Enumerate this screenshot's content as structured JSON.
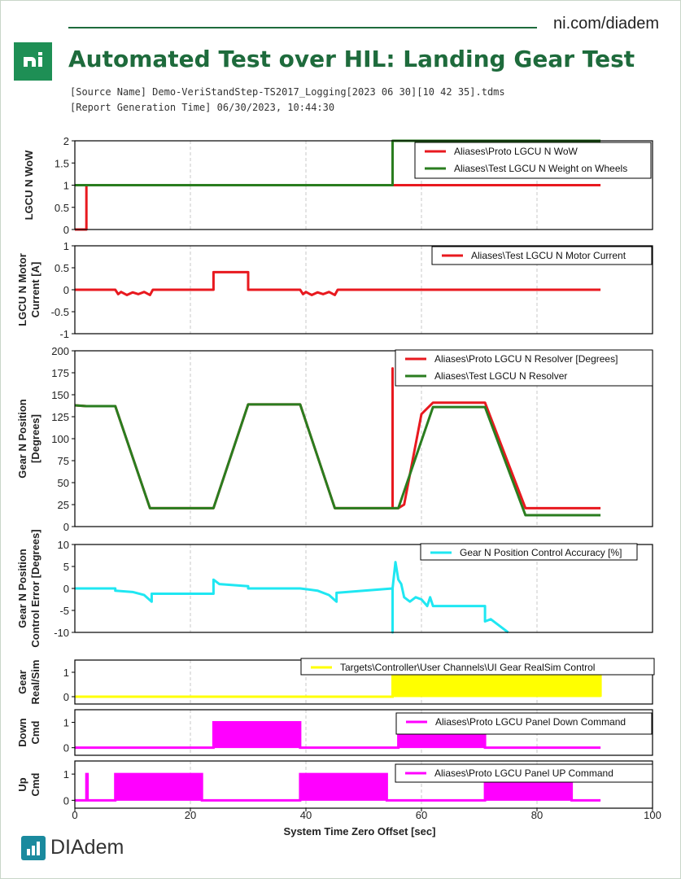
{
  "header": {
    "site": "ni.com/diadem",
    "title": "Automated Test over HIL: Landing Gear Test",
    "source_line": "[Source Name] Demo-VeriStandStep-TS2017_Logging[2023 06 30][10 42 35].tdms",
    "time_line": "[Report Generation Time] 06/30/2023, 10:44:30",
    "logo_icon": "ni-logo-icon"
  },
  "footer": {
    "name": "DIAdem",
    "icon": "diadem-logo-icon"
  },
  "colors": {
    "red": "#e8191f",
    "green": "#2a7d1f",
    "cyan": "#1fe7f2",
    "yellow": "#ffff00",
    "magenta": "#ff00ff",
    "brand": "#1e6b3c"
  },
  "chart_data": [
    {
      "type": "line",
      "ylabel": "LGCU N WoW",
      "xlim": [
        0,
        100
      ],
      "ylim": [
        0,
        2
      ],
      "yticks": [
        "0",
        "0.5",
        "1",
        "1.5",
        "2"
      ],
      "legend_position": "top-right",
      "series": [
        {
          "name": "Aliases\\Proto LGCU N WoW",
          "color": "#e8191f",
          "x": [
            0,
            2,
            2,
            91
          ],
          "y": [
            0,
            0,
            1,
            1
          ]
        },
        {
          "name": "Aliases\\Test LGCU N Weight on Wheels",
          "color": "#2a7d1f",
          "x": [
            0,
            55,
            55,
            91
          ],
          "y": [
            1,
            1,
            2,
            2
          ]
        }
      ]
    },
    {
      "type": "line",
      "ylabel": "LGCU N Motor Current [A]",
      "xlim": [
        0,
        100
      ],
      "ylim": [
        -1,
        1
      ],
      "yticks": [
        "-1",
        "-0.5",
        "0",
        "0.5",
        "1"
      ],
      "legend_position": "top-right",
      "series": [
        {
          "name": "Aliases\\Test LGCU N Motor Current",
          "color": "#e8191f",
          "x": [
            0,
            7,
            7.5,
            8,
            9,
            10,
            11,
            12,
            13,
            13.5,
            24,
            24,
            30,
            30,
            39,
            39.5,
            40,
            41,
            42,
            43,
            44,
            45,
            45.5,
            91
          ],
          "y": [
            0,
            0,
            -0.1,
            -0.05,
            -0.12,
            -0.06,
            -0.1,
            -0.05,
            -0.12,
            0,
            0,
            0.4,
            0.4,
            0,
            0,
            -0.1,
            -0.05,
            -0.12,
            -0.06,
            -0.1,
            -0.05,
            -0.12,
            0,
            0
          ]
        }
      ]
    },
    {
      "type": "line",
      "ylabel": "Gear N Position [Degrees]",
      "xlim": [
        0,
        100
      ],
      "ylim": [
        0,
        200
      ],
      "yticks": [
        "0",
        "25",
        "50",
        "75",
        "100",
        "125",
        "150",
        "175",
        "200"
      ],
      "legend_position": "top-right",
      "series": [
        {
          "name": "Aliases\\Proto LGCU N Resolver [Degrees]",
          "color": "#e8191f",
          "x": [
            0,
            2,
            7,
            13,
            24,
            30,
            39,
            45,
            55,
            55,
            55,
            56,
            57,
            60,
            62,
            71,
            78,
            91
          ],
          "y": [
            138,
            137,
            137,
            21,
            21,
            139,
            139,
            21,
            21,
            180,
            21,
            21,
            25,
            128,
            141,
            141,
            21,
            21
          ]
        },
        {
          "name": "Aliases\\Test LGCU N Resolver",
          "color": "#2a7d1f",
          "x": [
            0,
            2,
            7,
            13,
            24,
            30,
            39,
            45,
            56,
            62,
            71,
            78,
            91
          ],
          "y": [
            138,
            137,
            137,
            21,
            21,
            139,
            139,
            21,
            21,
            136,
            136,
            13,
            13
          ]
        }
      ]
    },
    {
      "type": "line",
      "ylabel": "Gear N Position Control Error [Degrees]",
      "xlim": [
        0,
        100
      ],
      "ylim": [
        -10,
        10
      ],
      "yticks": [
        "-10",
        "-5",
        "0",
        "5",
        "10"
      ],
      "legend_position": "top-right",
      "series": [
        {
          "name": "Gear N Position Control Accuracy [%]",
          "color": "#1fe7f2",
          "x": [
            0,
            7,
            7,
            10,
            12,
            13.3,
            13.3,
            24,
            24,
            25,
            30,
            30,
            39,
            42,
            44,
            45.3,
            45.3,
            55,
            55,
            55,
            55.5,
            56,
            56.5,
            57,
            58,
            59,
            60,
            61,
            61.5,
            62,
            71,
            71,
            72,
            73,
            74,
            75
          ],
          "y": [
            0,
            0,
            -0.5,
            -0.8,
            -1.5,
            -3,
            -1.2,
            -1.2,
            2,
            1,
            0.5,
            0,
            0,
            -0.5,
            -1.5,
            -3,
            -1,
            0,
            -10,
            0,
            6,
            2,
            1,
            -2,
            -3,
            -2,
            -2.5,
            -4,
            -2,
            -4,
            -4,
            -7.5,
            -7,
            -8,
            -9,
            -10
          ]
        }
      ]
    },
    {
      "type": "area",
      "ylabel": "Gear Real/Sim",
      "xlim": [
        0,
        100
      ],
      "ylim": [
        -0.3,
        1.5
      ],
      "yticks": [
        "0",
        "1"
      ],
      "legend_position": "top-right",
      "series": [
        {
          "name": "Targets\\Controller\\User Channels\\UI Gear RealSim Control",
          "color": "#ffff00",
          "x": [
            0,
            55,
            55,
            91,
            91
          ],
          "y": [
            0,
            0,
            1,
            1,
            0
          ]
        }
      ]
    },
    {
      "type": "area",
      "ylabel": "Down Cmd",
      "xlim": [
        0,
        100
      ],
      "ylim": [
        -0.3,
        1.5
      ],
      "yticks": [
        "0",
        "1"
      ],
      "legend_position": "top-right",
      "series": [
        {
          "name": "Aliases\\Proto LGCU Panel Down Command",
          "color": "#ff00ff",
          "x": [
            0,
            24,
            24,
            39,
            39,
            56,
            56,
            71,
            71,
            91
          ],
          "y": [
            0,
            0,
            1,
            1,
            0,
            0,
            1,
            1,
            0,
            0
          ]
        }
      ]
    },
    {
      "type": "area",
      "ylabel": "Up Cmd",
      "xlim": [
        0,
        100
      ],
      "ylim": [
        -0.3,
        1.5
      ],
      "yticks": [
        "0",
        "1"
      ],
      "xticks": [
        "0",
        "20",
        "40",
        "60",
        "80",
        "100"
      ],
      "xlabel": "System Time Zero Offset [sec]",
      "legend_position": "top-right",
      "series": [
        {
          "name": "Aliases\\Proto LGCU Panel UP Command",
          "color": "#ff00ff",
          "x": [
            0,
            2,
            2,
            2.2,
            2.2,
            7,
            7,
            22,
            22,
            39,
            39,
            54,
            54,
            71,
            71,
            86,
            86,
            91
          ],
          "y": [
            0,
            0,
            1,
            1,
            0,
            0,
            1,
            1,
            0,
            0,
            1,
            1,
            0,
            0,
            1,
            1,
            0,
            0
          ]
        }
      ]
    }
  ]
}
